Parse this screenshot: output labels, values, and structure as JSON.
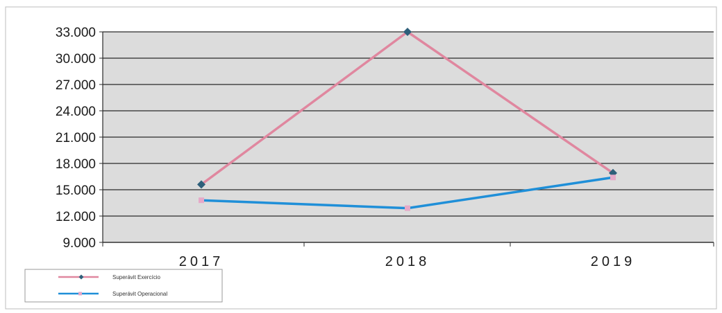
{
  "chart_data": {
    "type": "line",
    "categories": [
      "2017",
      "2018",
      "2019"
    ],
    "series": [
      {
        "name": "Superávit Exercício",
        "values": [
          15600,
          33000,
          16900
        ],
        "color": "#e0879f",
        "marker": "diamond",
        "marker_color": "#2e5f7a"
      },
      {
        "name": "Superávit Operacional",
        "values": [
          13800,
          12900,
          16400
        ],
        "color": "#1f8fd8",
        "marker": "square",
        "marker_color": "#e6a9c8"
      }
    ],
    "ylim": [
      9000,
      33000
    ],
    "yticks": [
      9000,
      12000,
      15000,
      18000,
      21000,
      24000,
      27000,
      30000,
      33000
    ],
    "ytick_labels": [
      "9.000",
      "12.000",
      "15.000",
      "18.000",
      "21.000",
      "24.000",
      "27.000",
      "30.000",
      "33.000"
    ],
    "grid": true,
    "legend": "bottom-left",
    "plot_bg": "#dcdcdc"
  }
}
